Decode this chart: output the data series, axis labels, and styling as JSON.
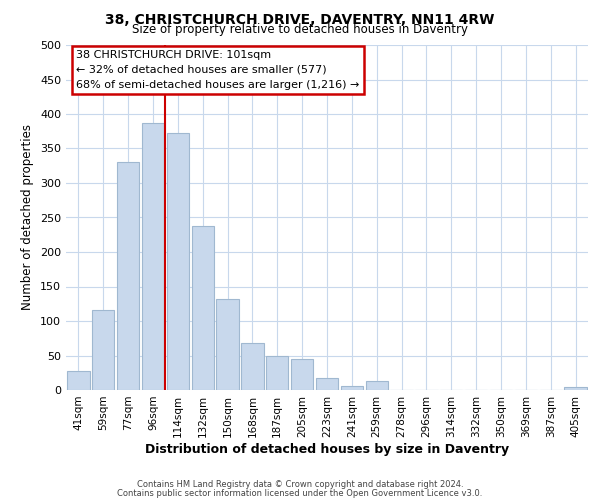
{
  "title": "38, CHRISTCHURCH DRIVE, DAVENTRY, NN11 4RW",
  "subtitle": "Size of property relative to detached houses in Daventry",
  "xlabel": "Distribution of detached houses by size in Daventry",
  "ylabel": "Number of detached properties",
  "bar_color": "#c8d8ec",
  "bar_edge_color": "#a0b8d0",
  "grid_color": "#c8d8ec",
  "annotation_box_color": "#cc0000",
  "annotation_line_color": "#cc0000",
  "categories": [
    "41sqm",
    "59sqm",
    "77sqm",
    "96sqm",
    "114sqm",
    "132sqm",
    "150sqm",
    "168sqm",
    "187sqm",
    "205sqm",
    "223sqm",
    "241sqm",
    "259sqm",
    "278sqm",
    "296sqm",
    "314sqm",
    "332sqm",
    "350sqm",
    "369sqm",
    "387sqm",
    "405sqm"
  ],
  "values": [
    27,
    116,
    330,
    387,
    373,
    237,
    132,
    68,
    50,
    45,
    18,
    6,
    13,
    0,
    0,
    0,
    0,
    0,
    0,
    0,
    5
  ],
  "ylim": [
    0,
    500
  ],
  "yticks": [
    0,
    50,
    100,
    150,
    200,
    250,
    300,
    350,
    400,
    450,
    500
  ],
  "property_line_x": 3.5,
  "annotation_title": "38 CHRISTCHURCH DRIVE: 101sqm",
  "annotation_line1": "← 32% of detached houses are smaller (577)",
  "annotation_line2": "68% of semi-detached houses are larger (1,216) →",
  "footer_line1": "Contains HM Land Registry data © Crown copyright and database right 2024.",
  "footer_line2": "Contains public sector information licensed under the Open Government Licence v3.0.",
  "background_color": "#ffffff"
}
